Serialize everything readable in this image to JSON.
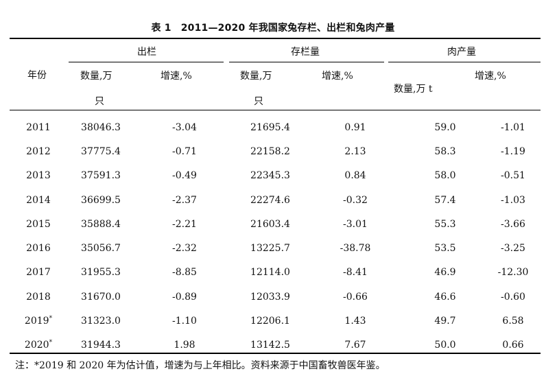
{
  "table": {
    "number": "表 1",
    "title": "2011—2020 年我国家兔存栏、出栏和兔肉产量",
    "col_year": "年份",
    "group_out": "出栏",
    "group_stock": "存栏量",
    "group_meat": "肉产量",
    "out_qty_line1": "数量,万",
    "out_qty_line2": "只",
    "out_growth": "增速,%",
    "stock_qty_line1": "数量,万",
    "stock_qty_line2": "只",
    "stock_growth": "增速,%",
    "meat_qty": "数量,万 t",
    "meat_growth": "增速,%",
    "rows": [
      {
        "year": "2011",
        "mark": "",
        "out_qty": "38046.3",
        "out_growth": "-3.04",
        "stock_qty": "21695.4",
        "stock_growth": "0.91",
        "meat_qty": "59.0",
        "meat_growth": "-1.01"
      },
      {
        "year": "2012",
        "mark": "",
        "out_qty": "37775.4",
        "out_growth": "-0.71",
        "stock_qty": "22158.2",
        "stock_growth": "2.13",
        "meat_qty": "58.3",
        "meat_growth": "-1.19"
      },
      {
        "year": "2013",
        "mark": "",
        "out_qty": "37591.3",
        "out_growth": "-0.49",
        "stock_qty": "22345.3",
        "stock_growth": "0.84",
        "meat_qty": "58.0",
        "meat_growth": "-0.51"
      },
      {
        "year": "2014",
        "mark": "",
        "out_qty": "36699.5",
        "out_growth": "-2.37",
        "stock_qty": "22274.6",
        "stock_growth": "-0.32",
        "meat_qty": "57.4",
        "meat_growth": "-1.03"
      },
      {
        "year": "2015",
        "mark": "",
        "out_qty": "35888.4",
        "out_growth": "-2.21",
        "stock_qty": "21603.4",
        "stock_growth": "-3.01",
        "meat_qty": "55.3",
        "meat_growth": "-3.66"
      },
      {
        "year": "2016",
        "mark": "",
        "out_qty": "35056.7",
        "out_growth": "-2.32",
        "stock_qty": "13225.7",
        "stock_growth": "-38.78",
        "meat_qty": "53.5",
        "meat_growth": "-3.25"
      },
      {
        "year": "2017",
        "mark": "",
        "out_qty": "31955.3",
        "out_growth": "-8.85",
        "stock_qty": "12114.0",
        "stock_growth": "-8.41",
        "meat_qty": "46.9",
        "meat_growth": "-12.30"
      },
      {
        "year": "2018",
        "mark": "",
        "out_qty": "31670.0",
        "out_growth": "-0.89",
        "stock_qty": "12033.9",
        "stock_growth": "-0.66",
        "meat_qty": "46.6",
        "meat_growth": "-0.60"
      },
      {
        "year": "2019",
        "mark": "*",
        "out_qty": "31323.0",
        "out_growth": "-1.10",
        "stock_qty": "12206.1",
        "stock_growth": "1.43",
        "meat_qty": "49.7",
        "meat_growth": "6.58"
      },
      {
        "year": "2020",
        "mark": "*",
        "out_qty": "31944.3",
        "out_growth": "1.98",
        "stock_qty": "13142.5",
        "stock_growth": "7.67",
        "meat_qty": "50.0",
        "meat_growth": "0.66"
      }
    ],
    "note": "注：*2019 和 2020 年为估计值，增速为与上年相比。资料来源于中国畜牧兽医年鉴。"
  }
}
